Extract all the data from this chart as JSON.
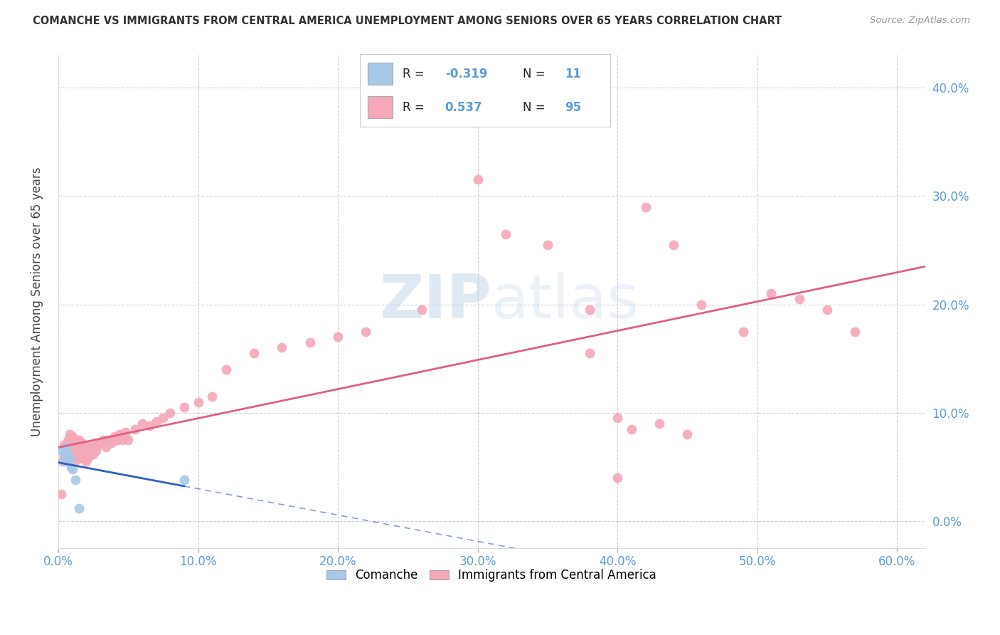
{
  "title": "COMANCHE VS IMMIGRANTS FROM CENTRAL AMERICA UNEMPLOYMENT AMONG SENIORS OVER 65 YEARS CORRELATION CHART",
  "source": "Source: ZipAtlas.com",
  "ylabel": "Unemployment Among Seniors over 65 years",
  "xlim": [
    0.0,
    0.62
  ],
  "ylim": [
    -0.025,
    0.43
  ],
  "yticks": [
    0.0,
    0.1,
    0.2,
    0.3,
    0.4
  ],
  "xticks": [
    0.0,
    0.1,
    0.2,
    0.3,
    0.4,
    0.5,
    0.6
  ],
  "background_color": "#ffffff",
  "legend_R1": "-0.319",
  "legend_N1": "11",
  "legend_R2": "0.537",
  "legend_N2": "95",
  "comanche_color": "#a8c8e8",
  "immigrants_color": "#f4a8b8",
  "line1_color": "#3060c0",
  "line2_color": "#e06080",
  "comanche_x": [
    0.002,
    0.004,
    0.005,
    0.006,
    0.007,
    0.008,
    0.009,
    0.01,
    0.012,
    0.015,
    0.09
  ],
  "comanche_y": [
    0.065,
    0.055,
    0.062,
    0.068,
    0.06,
    0.058,
    0.05,
    0.048,
    0.038,
    0.012,
    0.038
  ],
  "imm_x_dense": [
    0.002,
    0.003,
    0.004,
    0.004,
    0.005,
    0.005,
    0.006,
    0.006,
    0.007,
    0.007,
    0.007,
    0.008,
    0.008,
    0.008,
    0.009,
    0.009,
    0.01,
    0.01,
    0.01,
    0.011,
    0.011,
    0.012,
    0.012,
    0.012,
    0.013,
    0.013,
    0.014,
    0.014,
    0.015,
    0.015,
    0.015,
    0.016,
    0.016,
    0.017,
    0.017,
    0.018,
    0.018,
    0.019,
    0.019,
    0.02,
    0.02,
    0.021,
    0.021,
    0.022,
    0.023,
    0.024,
    0.025,
    0.026,
    0.027,
    0.028,
    0.03,
    0.032,
    0.034,
    0.036,
    0.038,
    0.04,
    0.042,
    0.044,
    0.046,
    0.048,
    0.05,
    0.055,
    0.06,
    0.065,
    0.07,
    0.075,
    0.08,
    0.09,
    0.1,
    0.11,
    0.12,
    0.14,
    0.16,
    0.18,
    0.2,
    0.22,
    0.26,
    0.3,
    0.32,
    0.35,
    0.38,
    0.4,
    0.42,
    0.44,
    0.46,
    0.49,
    0.51,
    0.53,
    0.55,
    0.57,
    0.4,
    0.41,
    0.43,
    0.45,
    0.38
  ],
  "imm_y_dense": [
    0.025,
    0.055,
    0.06,
    0.07,
    0.058,
    0.068,
    0.062,
    0.072,
    0.065,
    0.055,
    0.075,
    0.06,
    0.07,
    0.08,
    0.065,
    0.075,
    0.058,
    0.068,
    0.078,
    0.062,
    0.072,
    0.056,
    0.065,
    0.075,
    0.06,
    0.07,
    0.063,
    0.073,
    0.058,
    0.065,
    0.075,
    0.06,
    0.07,
    0.062,
    0.072,
    0.058,
    0.068,
    0.06,
    0.07,
    0.055,
    0.065,
    0.058,
    0.068,
    0.06,
    0.065,
    0.07,
    0.062,
    0.068,
    0.065,
    0.07,
    0.072,
    0.075,
    0.068,
    0.075,
    0.072,
    0.078,
    0.075,
    0.08,
    0.075,
    0.082,
    0.075,
    0.085,
    0.09,
    0.088,
    0.092,
    0.095,
    0.1,
    0.105,
    0.11,
    0.115,
    0.14,
    0.155,
    0.16,
    0.165,
    0.17,
    0.175,
    0.195,
    0.315,
    0.265,
    0.255,
    0.195,
    0.04,
    0.29,
    0.255,
    0.2,
    0.175,
    0.21,
    0.205,
    0.195,
    0.175,
    0.095,
    0.085,
    0.09,
    0.08,
    0.155
  ]
}
